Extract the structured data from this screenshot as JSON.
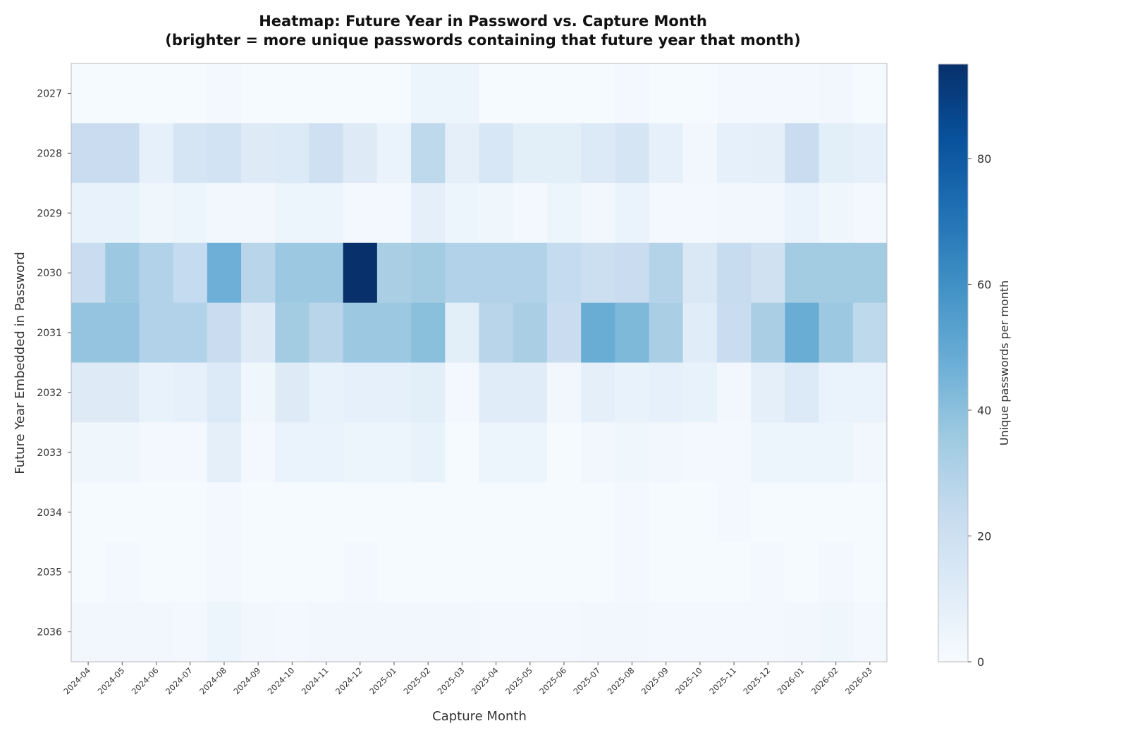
{
  "chart_data": {
    "type": "heatmap",
    "title": "Heatmap: Future Year in Password vs. Capture Month",
    "subtitle": "(brighter = more unique passwords containing that future year that month)",
    "xlabel": "Capture Month",
    "ylabel": "Future Year Embedded in Password",
    "colorbar_label": "Unique passwords per month",
    "colormap": "Blues",
    "color_range": [
      0,
      95
    ],
    "colorbar_ticks": [
      0,
      20,
      40,
      60,
      80
    ],
    "x": [
      "2024-04",
      "2024-05",
      "2024-06",
      "2024-07",
      "2024-08",
      "2024-09",
      "2024-10",
      "2024-11",
      "2024-12",
      "2025-01",
      "2025-02",
      "2025-03",
      "2025-04",
      "2025-05",
      "2025-06",
      "2025-07",
      "2025-08",
      "2025-09",
      "2025-10",
      "2025-11",
      "2025-12",
      "2026-01",
      "2026-02",
      "2026-03"
    ],
    "y": [
      "2027",
      "2028",
      "2029",
      "2030",
      "2031",
      "2032",
      "2033",
      "2034",
      "2035",
      "2036"
    ],
    "values": [
      [
        1,
        1,
        1,
        1,
        2,
        1,
        1,
        1,
        1,
        1,
        5,
        5,
        1,
        1,
        1,
        1,
        2,
        1,
        1,
        2,
        2,
        2,
        3,
        1
      ],
      [
        22,
        22,
        8,
        16,
        18,
        12,
        13,
        20,
        12,
        6,
        26,
        9,
        15,
        10,
        10,
        13,
        16,
        8,
        3,
        8,
        9,
        22,
        10,
        8
      ],
      [
        7,
        7,
        4,
        5,
        3,
        3,
        5,
        5,
        2,
        2,
        9,
        5,
        4,
        2,
        5,
        3,
        6,
        2,
        2,
        3,
        3,
        6,
        4,
        2
      ],
      [
        22,
        36,
        30,
        24,
        47,
        28,
        36,
        36,
        95,
        32,
        34,
        30,
        30,
        30,
        24,
        21,
        22,
        29,
        14,
        23,
        19,
        34,
        34,
        34
      ],
      [
        38,
        38,
        30,
        30,
        22,
        12,
        34,
        28,
        36,
        36,
        40,
        10,
        28,
        32,
        22,
        48,
        43,
        32,
        11,
        22,
        32,
        48,
        36,
        26
      ],
      [
        12,
        12,
        7,
        8,
        13,
        4,
        12,
        7,
        8,
        8,
        10,
        2,
        11,
        11,
        3,
        9,
        7,
        8,
        7,
        3,
        9,
        13,
        6,
        6
      ],
      [
        4,
        4,
        2,
        2,
        9,
        2,
        6,
        6,
        5,
        5,
        7,
        1,
        5,
        5,
        1,
        3,
        4,
        3,
        2,
        2,
        5,
        5,
        5,
        3
      ],
      [
        1,
        1,
        1,
        1,
        2,
        1,
        1,
        1,
        1,
        1,
        1,
        1,
        1,
        1,
        1,
        1,
        2,
        1,
        1,
        2,
        1,
        1,
        1,
        1
      ],
      [
        1,
        2,
        1,
        1,
        2,
        1,
        1,
        1,
        2,
        1,
        1,
        1,
        1,
        1,
        1,
        1,
        2,
        1,
        1,
        1,
        2,
        1,
        2,
        1
      ],
      [
        3,
        3,
        3,
        2,
        5,
        3,
        2,
        3,
        3,
        3,
        3,
        3,
        2,
        2,
        2,
        3,
        3,
        2,
        2,
        2,
        2,
        3,
        4,
        2
      ]
    ]
  }
}
